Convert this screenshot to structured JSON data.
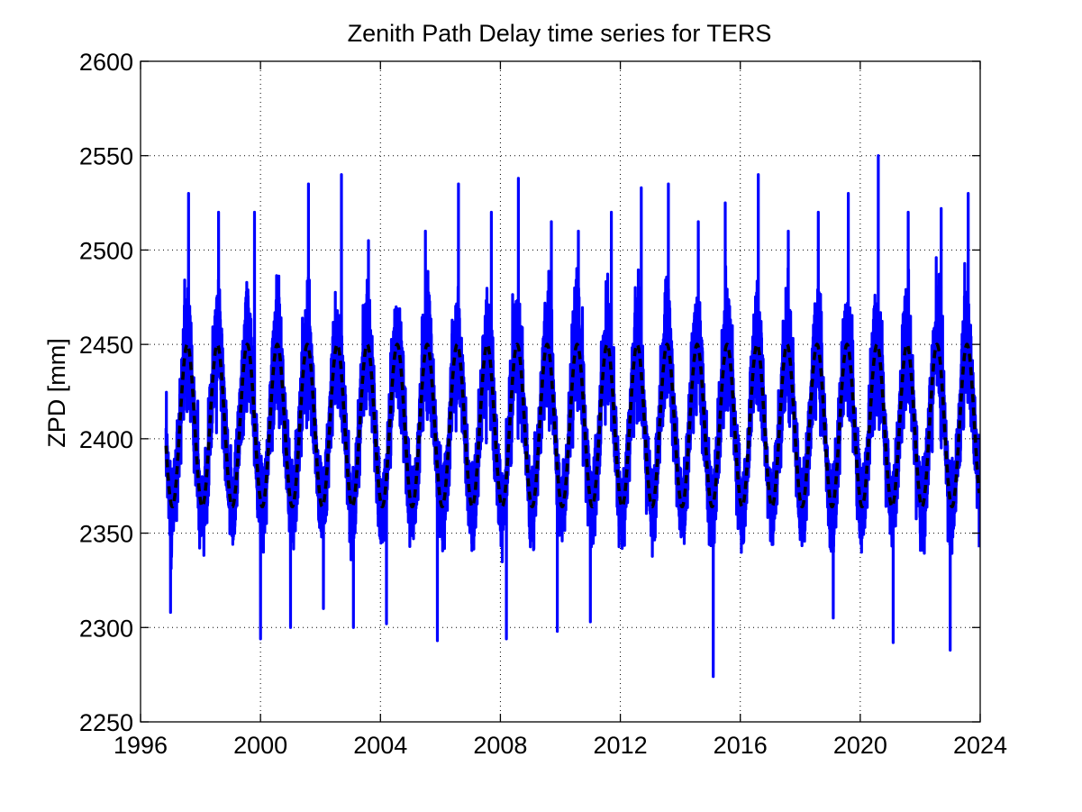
{
  "chart_data": {
    "type": "line",
    "title": "Zenith Path Delay time series for TERS",
    "xlabel": "",
    "ylabel": "ZPD [mm]",
    "xlim": [
      1996,
      2024
    ],
    "ylim": [
      2250,
      2600
    ],
    "xticks": [
      "1996",
      "2000",
      "2004",
      "2008",
      "2012",
      "2016",
      "2020",
      "2024"
    ],
    "yticks": [
      "2250",
      "2300",
      "2350",
      "2400",
      "2450",
      "2500",
      "2550",
      "2600"
    ],
    "grid": true,
    "series": [
      {
        "style": "solid",
        "color": "#0000ff",
        "description_samples": {
          "date_range": [
            "1996-11",
            "2023-12"
          ],
          "annual_peak_near": "July",
          "annual_trough_near": "January",
          "max_values": [
            {
              "x": 1997.6,
              "y": 2530
            },
            {
              "x": 1998.6,
              "y": 2520
            },
            {
              "x": 1999.8,
              "y": 2520
            },
            {
              "x": 2001.6,
              "y": 2535
            },
            {
              "x": 2002.7,
              "y": 2540
            },
            {
              "x": 2003.6,
              "y": 2505
            },
            {
              "x": 2005.5,
              "y": 2510
            },
            {
              "x": 2006.6,
              "y": 2535
            },
            {
              "x": 2007.7,
              "y": 2520
            },
            {
              "x": 2008.6,
              "y": 2538
            },
            {
              "x": 2009.7,
              "y": 2515
            },
            {
              "x": 2010.6,
              "y": 2510
            },
            {
              "x": 2011.7,
              "y": 2520
            },
            {
              "x": 2012.7,
              "y": 2533
            },
            {
              "x": 2013.6,
              "y": 2535
            },
            {
              "x": 2014.6,
              "y": 2515
            },
            {
              "x": 2015.5,
              "y": 2525
            },
            {
              "x": 2016.6,
              "y": 2540
            },
            {
              "x": 2017.6,
              "y": 2510
            },
            {
              "x": 2018.6,
              "y": 2520
            },
            {
              "x": 2019.6,
              "y": 2530
            },
            {
              "x": 2020.6,
              "y": 2550
            },
            {
              "x": 2021.6,
              "y": 2520
            },
            {
              "x": 2022.7,
              "y": 2522
            },
            {
              "x": 2023.6,
              "y": 2530
            }
          ],
          "min_values": [
            {
              "x": 1997.0,
              "y": 2308
            },
            {
              "x": 2000.0,
              "y": 2294
            },
            {
              "x": 2001.0,
              "y": 2300
            },
            {
              "x": 2002.1,
              "y": 2310
            },
            {
              "x": 2003.1,
              "y": 2300
            },
            {
              "x": 2004.2,
              "y": 2302
            },
            {
              "x": 2005.9,
              "y": 2293
            },
            {
              "x": 2008.2,
              "y": 2294
            },
            {
              "x": 2009.9,
              "y": 2298
            },
            {
              "x": 2011.0,
              "y": 2303
            },
            {
              "x": 2015.1,
              "y": 2274
            },
            {
              "x": 2019.1,
              "y": 2305
            },
            {
              "x": 2021.1,
              "y": 2292
            },
            {
              "x": 2023.0,
              "y": 2288
            }
          ]
        }
      },
      {
        "style": "dashed",
        "color": "#000000",
        "model": "seasonal",
        "mean": 2407,
        "amplitude": 43,
        "period_years": 1,
        "peak_phase_year_fraction": 0.56
      }
    ]
  }
}
